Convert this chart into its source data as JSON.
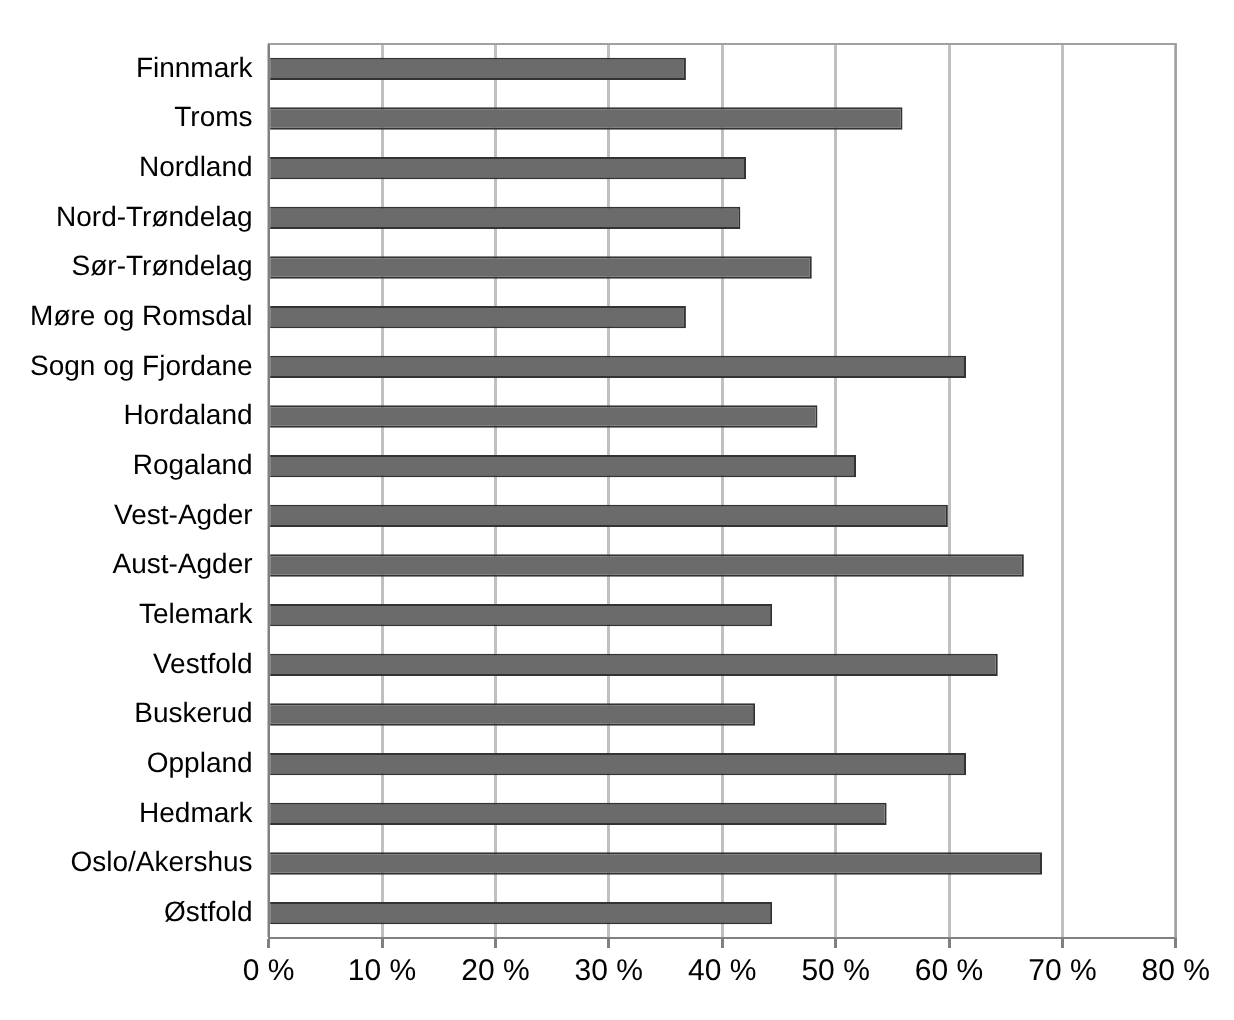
{
  "chart_data": {
    "type": "bar",
    "orientation": "horizontal",
    "categories": [
      "Finnmark",
      "Troms",
      "Nordland",
      "Nord-Trøndelag",
      "Sør-Trøndelag",
      "Møre og Romsdal",
      "Sogn og Fjordane",
      "Hordaland",
      "Rogaland",
      "Vest-Agder",
      "Aust-Agder",
      "Telemark",
      "Vestfold",
      "Buskerud",
      "Oppland",
      "Hedmark",
      "Oslo/Akershus",
      "Østfold"
    ],
    "values": [
      36.8,
      55.9,
      42.1,
      41.6,
      47.9,
      36.8,
      61.5,
      48.4,
      51.8,
      59.9,
      66.6,
      44.4,
      64.3,
      42.9,
      61.5,
      54.5,
      68.2,
      44.4
    ],
    "color": "#6b6b6b",
    "xlim": [
      0,
      80
    ],
    "xticks": [
      {
        "value": 0,
        "label": "0 %"
      },
      {
        "value": 10,
        "label": "10 %"
      },
      {
        "value": 20,
        "label": "20 %"
      },
      {
        "value": 30,
        "label": "30 %"
      },
      {
        "value": 40,
        "label": "40 %"
      },
      {
        "value": 50,
        "label": "50 %"
      },
      {
        "value": 60,
        "label": "60 %"
      },
      {
        "value": 70,
        "label": "70 %"
      },
      {
        "value": 80,
        "label": "80 %"
      }
    ],
    "grid": "x",
    "legend": false
  }
}
